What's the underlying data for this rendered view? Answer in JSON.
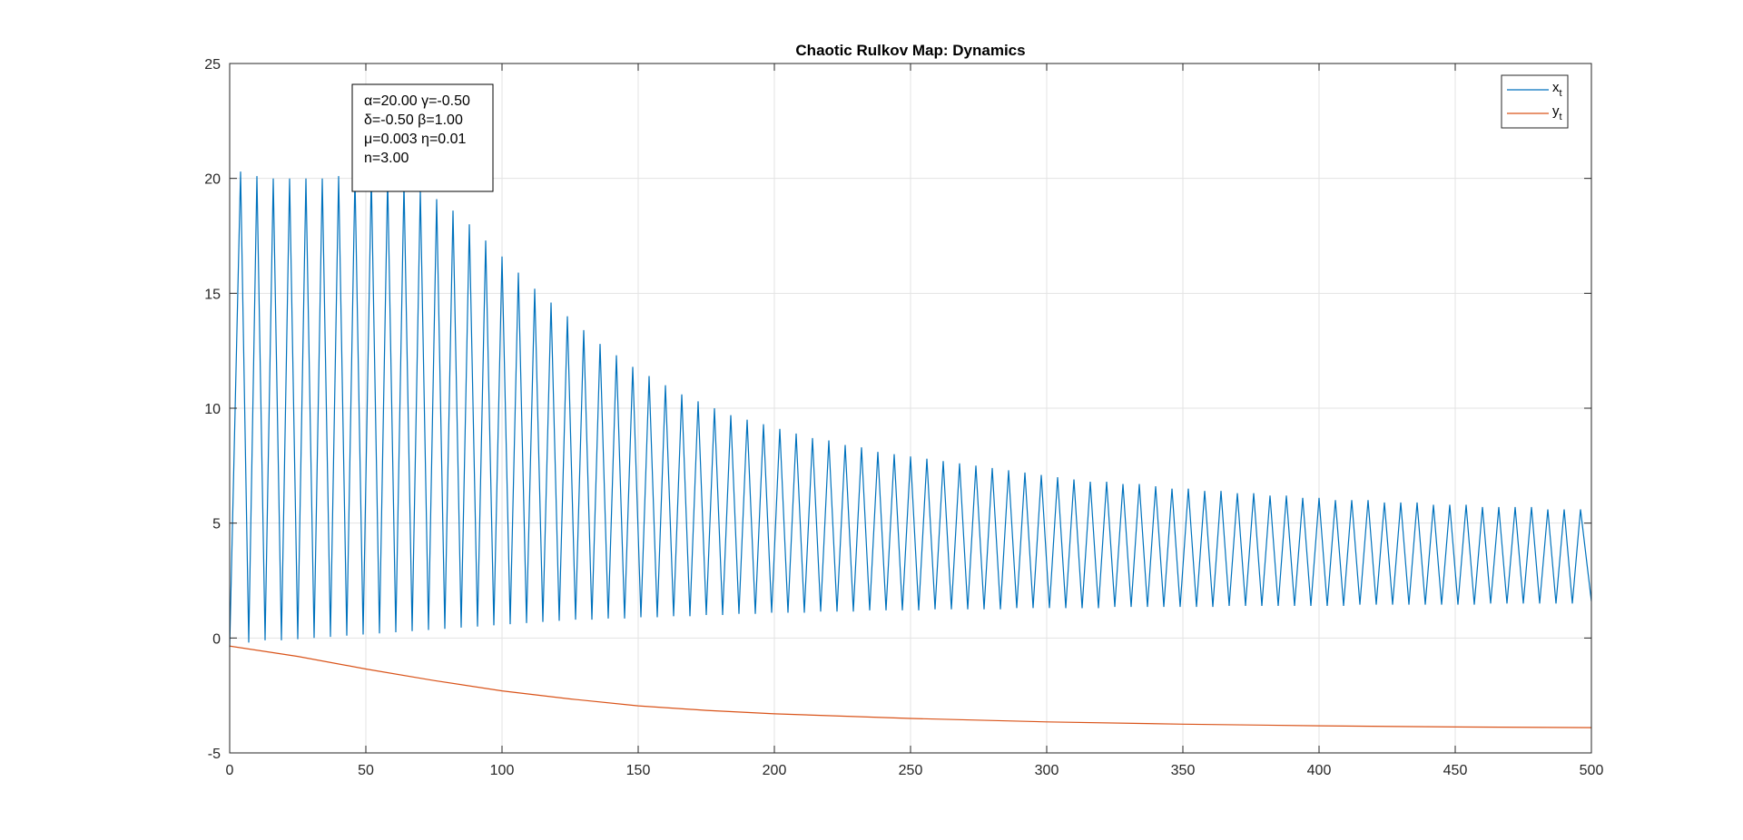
{
  "chart_data": {
    "type": "line",
    "title": "Chaotic Rulkov Map: Dynamics",
    "xlabel": "",
    "ylabel": "",
    "xlim": [
      0,
      500
    ],
    "ylim": [
      -5,
      25
    ],
    "x_ticks": [
      0,
      50,
      100,
      150,
      200,
      250,
      300,
      350,
      400,
      450,
      500
    ],
    "y_ticks": [
      -5,
      0,
      5,
      10,
      15,
      20,
      25
    ],
    "grid": true,
    "legend_placement": "top-right",
    "annotation_lines": [
      "α=20.00 γ=-0.50",
      "δ=-0.50 β=1.00",
      "μ=0.003 η=0.01",
      "n=3.00"
    ],
    "series": [
      {
        "name": "x",
        "name_subscript": "t",
        "color": "#0072BD",
        "oscillation_period": 6,
        "peaks": {
          "x": [
            4,
            10,
            16,
            22,
            28,
            34,
            40,
            46,
            52,
            58,
            64,
            70,
            76,
            82,
            88,
            94,
            100,
            106,
            112,
            118,
            124,
            130,
            136,
            142,
            148,
            154,
            160,
            166,
            172,
            178,
            184,
            190,
            196,
            202,
            208,
            214,
            220,
            226,
            232,
            238,
            244,
            250,
            256,
            262,
            268,
            274,
            280,
            286,
            292,
            298,
            304,
            310,
            316,
            322,
            328,
            334,
            340,
            346,
            352,
            358,
            364,
            370,
            376,
            382,
            388,
            394,
            400,
            406,
            412,
            418,
            424,
            430,
            436,
            442,
            448,
            454,
            460,
            466,
            472,
            478,
            484,
            490,
            496
          ],
          "y": [
            20.3,
            20.1,
            20.0,
            20.0,
            20.0,
            20.0,
            20.1,
            20.1,
            20.1,
            20.0,
            19.8,
            19.5,
            19.1,
            18.6,
            18.0,
            17.3,
            16.6,
            15.9,
            15.2,
            14.6,
            14.0,
            13.4,
            12.8,
            12.3,
            11.8,
            11.4,
            11.0,
            10.6,
            10.3,
            10.0,
            9.7,
            9.5,
            9.3,
            9.1,
            8.9,
            8.7,
            8.6,
            8.4,
            8.3,
            8.1,
            8.0,
            7.9,
            7.8,
            7.7,
            7.6,
            7.5,
            7.4,
            7.3,
            7.2,
            7.1,
            7.0,
            6.9,
            6.8,
            6.8,
            6.7,
            6.7,
            6.6,
            6.5,
            6.5,
            6.4,
            6.4,
            6.3,
            6.3,
            6.2,
            6.2,
            6.1,
            6.1,
            6.0,
            6.0,
            6.0,
            5.9,
            5.9,
            5.9,
            5.8,
            5.8,
            5.8,
            5.7,
            5.7,
            5.7,
            5.7,
            5.6,
            5.6,
            5.6
          ]
        },
        "troughs": {
          "x": [
            0,
            7,
            13,
            19,
            25,
            31,
            37,
            43,
            49,
            55,
            61,
            67,
            73,
            79,
            85,
            91,
            97,
            103,
            109,
            115,
            121,
            127,
            133,
            139,
            145,
            151,
            157,
            163,
            169,
            175,
            181,
            187,
            193,
            199,
            205,
            211,
            217,
            223,
            229,
            235,
            241,
            247,
            253,
            259,
            265,
            271,
            277,
            283,
            289,
            295,
            301,
            307,
            313,
            319,
            325,
            331,
            337,
            343,
            349,
            355,
            361,
            367,
            373,
            379,
            385,
            391,
            397,
            403,
            409,
            415,
            421,
            427,
            433,
            439,
            445,
            451,
            457,
            463,
            469,
            475,
            481,
            487,
            493,
            500
          ],
          "y": [
            -0.4,
            -0.2,
            -0.1,
            -0.1,
            -0.05,
            0.0,
            0.05,
            0.1,
            0.15,
            0.2,
            0.25,
            0.3,
            0.35,
            0.4,
            0.45,
            0.5,
            0.55,
            0.6,
            0.65,
            0.7,
            0.75,
            0.8,
            0.8,
            0.85,
            0.85,
            0.9,
            0.9,
            0.95,
            0.95,
            1.0,
            1.0,
            1.05,
            1.05,
            1.1,
            1.1,
            1.1,
            1.15,
            1.15,
            1.15,
            1.2,
            1.2,
            1.2,
            1.2,
            1.25,
            1.25,
            1.25,
            1.25,
            1.25,
            1.3,
            1.3,
            1.3,
            1.3,
            1.3,
            1.3,
            1.35,
            1.35,
            1.35,
            1.35,
            1.35,
            1.35,
            1.35,
            1.4,
            1.4,
            1.4,
            1.4,
            1.4,
            1.4,
            1.4,
            1.4,
            1.45,
            1.45,
            1.45,
            1.45,
            1.45,
            1.45,
            1.45,
            1.45,
            1.5,
            1.5,
            1.5,
            1.5,
            1.5,
            1.5,
            1.6
          ]
        }
      },
      {
        "name": "y",
        "name_subscript": "t",
        "color": "#D95319",
        "x": [
          0,
          25,
          50,
          75,
          100,
          125,
          150,
          175,
          200,
          250,
          300,
          350,
          400,
          450,
          500
        ],
        "y": [
          -0.35,
          -0.8,
          -1.35,
          -1.85,
          -2.3,
          -2.65,
          -2.95,
          -3.15,
          -3.3,
          -3.5,
          -3.65,
          -3.75,
          -3.82,
          -3.87,
          -3.9
        ]
      }
    ]
  }
}
